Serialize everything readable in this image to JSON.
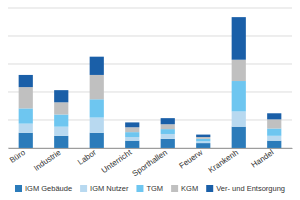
{
  "chart_data": {
    "type": "bar",
    "stacked": true,
    "categories": [
      "Büro",
      "Industrie",
      "Labor",
      "Unterricht",
      "Sporthallen",
      "Feuerw",
      "Krankenh",
      "Handel"
    ],
    "series": [
      {
        "name": "IGM Gebäude",
        "color": "#2b7bba",
        "values": [
          2.5,
          2.0,
          2.5,
          1.2,
          1.5,
          0.8,
          3.5,
          1.2
        ]
      },
      {
        "name": "IGM Nutzer",
        "color": "#b8d9f0",
        "values": [
          1.5,
          1.5,
          2.5,
          0.6,
          0.8,
          0.3,
          2.5,
          0.8
        ]
      },
      {
        "name": "TGM",
        "color": "#6ec6f0",
        "values": [
          2.5,
          2.0,
          3.0,
          0.8,
          0.8,
          0.4,
          5.0,
          1.2
        ]
      },
      {
        "name": "KGM",
        "color": "#c0c0c0",
        "values": [
          3.5,
          2.0,
          4.0,
          0.8,
          0.8,
          0.3,
          3.5,
          1.5
        ]
      },
      {
        "name": "Ver- und Entsorgung",
        "color": "#1a5fa8",
        "values": [
          2.0,
          2.0,
          3.0,
          0.8,
          1.0,
          0.4,
          7.0,
          1.0
        ]
      }
    ],
    "ylim": [
      0,
      23
    ],
    "yticks": [
      0,
      4.6,
      9.2,
      13.8,
      18.4,
      23
    ],
    "grid": true,
    "tick_labels": "x",
    "legend": "bottom"
  }
}
